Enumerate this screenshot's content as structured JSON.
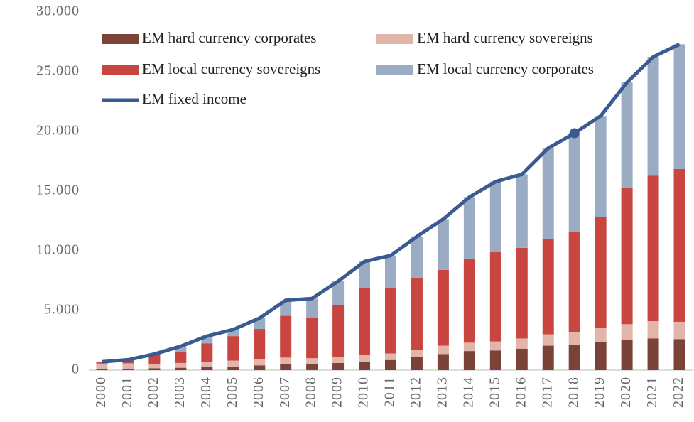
{
  "chart_data": {
    "type": "stacked_bar_line",
    "categories": [
      "2000",
      "2001",
      "2002",
      "2003",
      "2004",
      "2005",
      "2006",
      "2007",
      "2008",
      "2009",
      "2010",
      "2011",
      "2012",
      "2013",
      "2014",
      "2015",
      "2016",
      "2017",
      "2018",
      "2019",
      "2020",
      "2021",
      "2022"
    ],
    "series": [
      {
        "name": "EM hard currency corporates",
        "color": "#7b4238",
        "values": [
          100,
          120,
          150,
          200,
          250,
          300,
          400,
          500,
          500,
          600,
          700,
          850,
          1100,
          1350,
          1600,
          1650,
          1800,
          2050,
          2150,
          2350,
          2500,
          2650,
          2600
        ]
      },
      {
        "name": "EM hard currency sovereigns",
        "color": "#e2b5aa",
        "values": [
          450,
          450,
          350,
          400,
          450,
          500,
          500,
          550,
          500,
          500,
          550,
          550,
          600,
          700,
          700,
          750,
          850,
          950,
          1050,
          1200,
          1350,
          1450,
          1450
        ]
      },
      {
        "name": "EM local currency sovereigns",
        "color": "#c8463f",
        "values": [
          150,
          250,
          750,
          950,
          1550,
          2050,
          2550,
          3500,
          3350,
          4350,
          5600,
          5500,
          6000,
          6350,
          7050,
          7500,
          7600,
          8000,
          8400,
          9250,
          11400,
          12200,
          12800
        ]
      },
      {
        "name": "EM local currency corporates",
        "color": "#9aacc4",
        "values": [
          0,
          50,
          100,
          450,
          600,
          550,
          900,
          1300,
          1650,
          2000,
          2250,
          2700,
          3500,
          4250,
          5150,
          5900,
          6150,
          7600,
          8250,
          8500,
          8850,
          9950,
          10450
        ]
      },
      {
        "name": "EM fixed income",
        "color": "#3a5a92",
        "type": "line",
        "highlighted_category": "2018",
        "values": [
          700,
          870,
          1350,
          2000,
          2850,
          3400,
          4350,
          5850,
          6000,
          7450,
          9100,
          9600,
          11200,
          12650,
          14500,
          15800,
          16400,
          18600,
          19850,
          21300,
          24100,
          26250,
          27300
        ]
      }
    ],
    "ylim": [
      0,
      30000
    ],
    "yticks": [
      0,
      {
        "value": 5000,
        "label": "5.000"
      },
      {
        "value": 10000,
        "label": "10.000"
      },
      {
        "value": 15000,
        "label": "15.000"
      },
      {
        "value": 20000,
        "label": "20.000"
      },
      {
        "value": 25000,
        "label": "25.000"
      },
      {
        "value": 30000,
        "label": "30.000"
      }
    ],
    "grid": false
  }
}
